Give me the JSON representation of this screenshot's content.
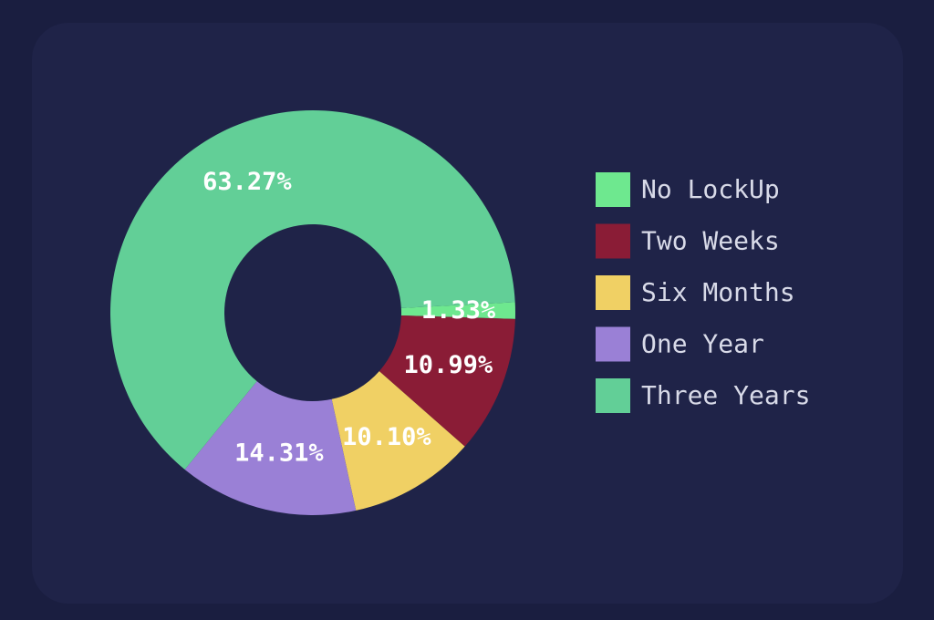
{
  "chart_data": {
    "type": "donut",
    "categories": [
      "No LockUp",
      "Two Weeks",
      "Six Months",
      "One Year",
      "Three Years"
    ],
    "values": [
      1.33,
      10.99,
      10.1,
      14.31,
      63.27
    ],
    "value_labels": [
      "1.33%",
      "10.99%",
      "10.10%",
      "14.31%",
      "63.27%"
    ],
    "colors": [
      "#6ee88f",
      "#8a1c36",
      "#f0d064",
      "#9a80d6",
      "#62cf97"
    ],
    "legend": "right"
  }
}
